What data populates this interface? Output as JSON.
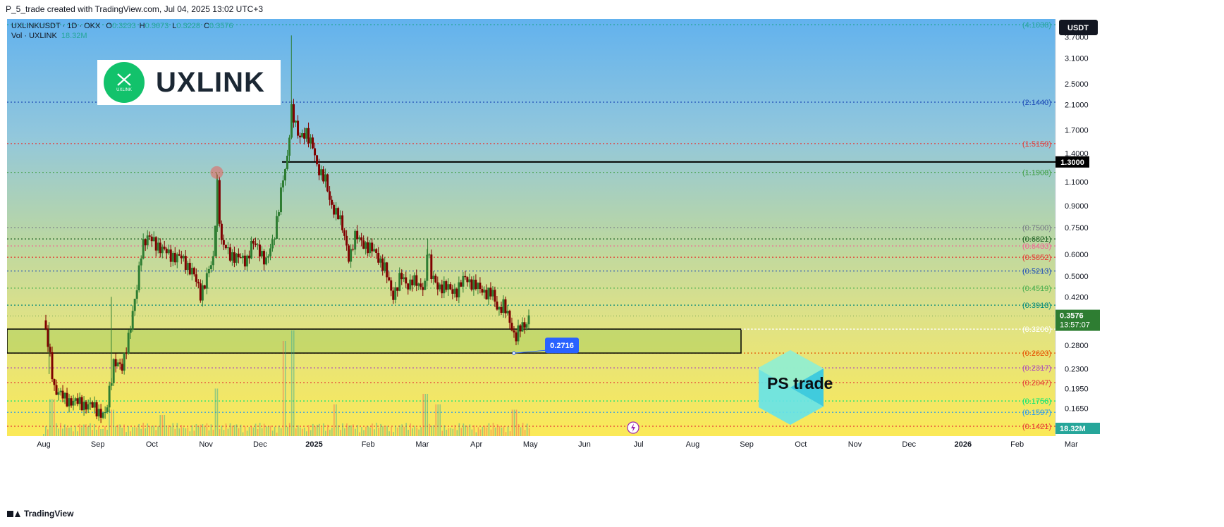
{
  "header": {
    "created_by": "P_5_trade created with TradingView.com, Jul 04, 2025 13:02 UTC+3"
  },
  "footer": {
    "brand": "TradingView"
  },
  "legend": {
    "symbol_line": "UXLINKUSDT · 1D · OKX",
    "ohlc": [
      {
        "k": "O",
        "v": "0.3233"
      },
      {
        "k": "H",
        "v": "0.3673"
      },
      {
        "k": "L",
        "v": "0.3228"
      },
      {
        "k": "C",
        "v": "0.3576"
      }
    ],
    "vol_label": "Vol · UXLINK",
    "vol_value": "18.32M"
  },
  "logo": {
    "text": "UXLINK",
    "mark_text": "UXLINK"
  },
  "watermark": {
    "text": "PS trade"
  },
  "chart_data": {
    "type": "candlestick",
    "scale": "log",
    "currency": "USDT",
    "x_ticks": [
      "Aug",
      "Sep",
      "Oct",
      "Nov",
      "Dec",
      "2025",
      "Feb",
      "Mar",
      "Apr",
      "May",
      "Jun",
      "Jul",
      "Aug",
      "Sep",
      "Oct",
      "Nov",
      "Dec",
      "2026",
      "Feb",
      "Mar"
    ],
    "y_ticks": [
      3.7,
      3.1,
      2.5,
      2.1,
      1.7,
      1.4,
      1.1,
      0.9,
      0.75,
      0.6,
      0.5,
      0.42,
      0.35,
      0.28,
      0.23,
      0.195,
      0.165
    ],
    "y_tick_labels": [
      "3.7000",
      "3.1000",
      "2.5000",
      "2.1000",
      "1.7000",
      "1.4000",
      "1.1000",
      "0.9000",
      "0.7500",
      "0.6000",
      "0.5000",
      "0.4200",
      "0.3500",
      "0.2800",
      "0.2300",
      "0.1950",
      "0.1650"
    ],
    "last_price": {
      "value": 0.3576,
      "label": "0.3576",
      "countdown": "13:57:07"
    },
    "volume_badge": "18.32M",
    "fib_levels": [
      {
        "value": 4.1038,
        "label": "(4.1038)",
        "color": "#26a69a"
      },
      {
        "value": 2.144,
        "label": "(2.1440)",
        "color": "#1e4db7"
      },
      {
        "value": 1.5159,
        "label": "(1.5159)",
        "color": "#e53935"
      },
      {
        "value": 1.1908,
        "label": "(1.1908)",
        "color": "#43a047"
      },
      {
        "value": 0.75,
        "label": "(0.7500)",
        "color": "#787b86"
      },
      {
        "value": 0.6821,
        "label": "(0.6821)",
        "color": "#1b5e20"
      },
      {
        "value": 0.6433,
        "label": "(0.6433)",
        "color": "#f06292"
      },
      {
        "value": 0.5852,
        "label": "(0.5852)",
        "color": "#e53935"
      },
      {
        "value": 0.5213,
        "label": "(0.5213)",
        "color": "#1e4db7"
      },
      {
        "value": 0.4519,
        "label": "(0.4519)",
        "color": "#4caf50"
      },
      {
        "value": 0.3918,
        "label": "(0.3918)",
        "color": "#00897b"
      },
      {
        "value": 0.3206,
        "label": "(0.3206)",
        "color": "#ffffff"
      },
      {
        "value": 0.2623,
        "label": "(0.2623)",
        "color": "#e65100"
      },
      {
        "value": 0.2317,
        "label": "(0.2317)",
        "color": "#ab47bc"
      },
      {
        "value": 0.2047,
        "label": "(0.2047)",
        "color": "#e53935"
      },
      {
        "value": 0.1756,
        "label": "(0.1756)",
        "color": "#00e676"
      },
      {
        "value": 0.1597,
        "label": "(0.1597)",
        "color": "#2196f3"
      },
      {
        "value": 0.1421,
        "label": "(0.1421)",
        "color": "#e53935"
      }
    ],
    "resistance": {
      "value": 1.3,
      "label": "1.3000"
    },
    "support_zone": {
      "top": 0.3206,
      "bottom": 0.2623
    },
    "low_callout": {
      "value": 0.2716,
      "label": "0.2716"
    },
    "price_path": [
      [
        0.0,
        0.345
      ],
      [
        0.1,
        0.265
      ],
      [
        0.2,
        0.195
      ],
      [
        0.4,
        0.178
      ],
      [
        0.7,
        0.172
      ],
      [
        0.9,
        0.168
      ],
      [
        1.0,
        0.162
      ],
      [
        1.15,
        0.155
      ],
      [
        1.3,
        0.25
      ],
      [
        1.45,
        0.228
      ],
      [
        1.6,
        0.33
      ],
      [
        1.72,
        0.44
      ],
      [
        1.82,
        0.66
      ],
      [
        1.92,
        0.69
      ],
      [
        2.1,
        0.65
      ],
      [
        2.3,
        0.6
      ],
      [
        2.55,
        0.58
      ],
      [
        2.75,
        0.52
      ],
      [
        2.9,
        0.43
      ],
      [
        3.05,
        0.52
      ],
      [
        3.15,
        0.58
      ],
      [
        3.2,
        1.19
      ],
      [
        3.28,
        0.66
      ],
      [
        3.45,
        0.6
      ],
      [
        3.6,
        0.58
      ],
      [
        3.75,
        0.57
      ],
      [
        3.85,
        0.66
      ],
      [
        4.0,
        0.62
      ],
      [
        4.12,
        0.56
      ],
      [
        4.25,
        0.68
      ],
      [
        4.4,
        1.05
      ],
      [
        4.5,
        1.3
      ],
      [
        4.58,
        2.07
      ],
      [
        4.64,
        1.85
      ],
      [
        4.72,
        1.55
      ],
      [
        4.85,
        1.7
      ],
      [
        4.98,
        1.45
      ],
      [
        5.05,
        1.25
      ],
      [
        5.2,
        1.15
      ],
      [
        5.3,
        0.9
      ],
      [
        5.45,
        0.85
      ],
      [
        5.55,
        0.7
      ],
      [
        5.65,
        0.58
      ],
      [
        5.75,
        0.7
      ],
      [
        5.85,
        0.67
      ],
      [
        6.0,
        0.64
      ],
      [
        6.15,
        0.6
      ],
      [
        6.3,
        0.54
      ],
      [
        6.45,
        0.42
      ],
      [
        6.6,
        0.5
      ],
      [
        6.72,
        0.46
      ],
      [
        6.82,
        0.49
      ],
      [
        6.95,
        0.45
      ],
      [
        7.05,
        0.47
      ],
      [
        7.1,
        0.68
      ],
      [
        7.15,
        0.5
      ],
      [
        7.3,
        0.46
      ],
      [
        7.5,
        0.45
      ],
      [
        7.65,
        0.44
      ],
      [
        7.8,
        0.5
      ],
      [
        7.95,
        0.46
      ],
      [
        8.1,
        0.45
      ],
      [
        8.2,
        0.43
      ],
      [
        8.3,
        0.43
      ],
      [
        8.4,
        0.38
      ],
      [
        8.5,
        0.39
      ],
      [
        8.6,
        0.35
      ],
      [
        8.72,
        0.3
      ],
      [
        8.8,
        0.32
      ],
      [
        8.9,
        0.33
      ],
      [
        8.97,
        0.3576
      ]
    ],
    "volume_spikes": [
      [
        0.15,
        0.35
      ],
      [
        1.25,
        0.25
      ],
      [
        2.2,
        0.2
      ],
      [
        3.2,
        0.45
      ],
      [
        4.45,
        0.9
      ],
      [
        4.6,
        1.0
      ],
      [
        5.4,
        0.3
      ],
      [
        7.05,
        0.4
      ],
      [
        7.3,
        0.3
      ],
      [
        8.7,
        0.25
      ]
    ],
    "volume_colors": {
      "up": "#26a69a",
      "down": "#ef5350"
    },
    "candle_colors": {
      "up": "#2e7d32",
      "down": "#7f0000"
    }
  }
}
